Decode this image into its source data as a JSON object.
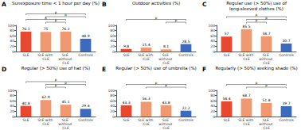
{
  "chart_data": [
    {
      "type": "bar",
      "label": "A",
      "title": "Sunexposure time < 1 hour per day (%)",
      "categories": [
        "SLE",
        "SLE with CLE",
        "SLE without CLE",
        "Controls"
      ],
      "values": [
        76.1,
        75,
        76.2,
        48.9
      ],
      "colors": [
        "#e84830",
        "#f09870",
        "#f09870",
        "#3b6abf"
      ],
      "ylim": [
        0,
        100
      ],
      "yticks": [
        0,
        20,
        40,
        60,
        80,
        100
      ],
      "grid": false,
      "data_labels": true,
      "annotations": [
        {
          "text": "p",
          "from": "SLE",
          "to": "Controls"
        },
        {
          "text": "p",
          "from": "SLE with CLE",
          "to": "Controls"
        },
        {
          "text": "p",
          "from": "SLE",
          "to": "SLE without CLE"
        },
        {
          "text": "p",
          "from": "SLE with CLE",
          "to": "SLE without CLE"
        }
      ]
    },
    {
      "type": "bar",
      "label": "B",
      "title": "Outdoor activities (%)",
      "categories": [
        "SLE",
        "SLE with CLE",
        "SLE without CLE",
        "Controls"
      ],
      "values": [
        9.8,
        15.4,
        8.1,
        28.5
      ],
      "colors": [
        "#e84830",
        "#f09870",
        "#f09870",
        "#3b6abf"
      ],
      "ylim": [
        0,
        100
      ],
      "yticks": [
        0,
        20,
        40,
        60,
        80,
        100
      ],
      "grid": false,
      "data_labels": true,
      "annotations": [
        {
          "text": "p",
          "from": "SLE",
          "to": "Controls"
        },
        {
          "text": "p",
          "from": "SLE without CLE",
          "to": "Controls"
        }
      ]
    },
    {
      "type": "bar",
      "label": "C",
      "title": "Regular use (> 50%) use of\nlong-sleeved clothes (%)",
      "categories": [
        "SLE",
        "SLE with CLE",
        "SLE without CLE",
        "Controls"
      ],
      "values": [
        57,
        85.5,
        58.7,
        30.7
      ],
      "colors": [
        "#e84830",
        "#f09870",
        "#f09870",
        "#3b6abf"
      ],
      "ylim": [
        0,
        100
      ],
      "yticks": [
        0,
        20,
        40,
        60,
        80,
        100
      ],
      "grid": false,
      "data_labels": true,
      "annotations": [
        {
          "text": "p",
          "from": "SLE",
          "to": "Controls"
        },
        {
          "text": "p",
          "from": "SLE with CLE",
          "to": "Controls"
        },
        {
          "text": "p",
          "from": "SLE with CLE",
          "to": "SLE without CLE"
        }
      ]
    },
    {
      "type": "bar",
      "label": "D",
      "title": "Regular (> 50%) use of hat (%)",
      "categories": [
        "SLE",
        "SLE with CLE",
        "SLE without CLE",
        "Controls"
      ],
      "values": [
        40.8,
        62.9,
        45.1,
        29.4
      ],
      "colors": [
        "#e84830",
        "#f09870",
        "#f09870",
        "#3b6abf"
      ],
      "ylim": [
        0,
        100
      ],
      "yticks": [
        0,
        20,
        40,
        60,
        80,
        100
      ],
      "grid": false,
      "data_labels": true,
      "annotations": [
        {
          "text": "p",
          "from": "SLE",
          "to": "Controls"
        },
        {
          "text": "p",
          "from": "SLE with CLE",
          "to": "Controls"
        },
        {
          "text": "p",
          "from": "SLE with CLE",
          "to": "SLE without CLE"
        }
      ]
    },
    {
      "type": "bar",
      "label": "E",
      "title": "Regular (> 50%) use of umbrella (%)",
      "categories": [
        "SLE",
        "SLE with CLE",
        "SLE without CLE",
        "Controls"
      ],
      "values": [
        43.3,
        56.3,
        43.8,
        22.2
      ],
      "colors": [
        "#e84830",
        "#f09870",
        "#f09870",
        "#3b6abf"
      ],
      "ylim": [
        0,
        100
      ],
      "yticks": [
        0,
        20,
        40,
        60,
        80,
        100
      ],
      "grid": false,
      "data_labels": true,
      "annotations": [
        {
          "text": "p",
          "from": "SLE",
          "to": "Controls"
        },
        {
          "text": "p",
          "from": "SLE with CLE",
          "to": "Controls"
        }
      ]
    },
    {
      "type": "bar",
      "label": "F",
      "title": "Regularly (> 50%) seeking shade (%)",
      "categories": [
        "SLE",
        "SLE with CLE",
        "SLE without CLE",
        "Controls"
      ],
      "values": [
        58.4,
        68.7,
        51.8,
        39.7
      ],
      "colors": [
        "#e84830",
        "#f09870",
        "#f09870",
        "#3b6abf"
      ],
      "ylim": [
        0,
        100
      ],
      "yticks": [
        0,
        20,
        40,
        60,
        80,
        100
      ],
      "grid": false,
      "data_labels": true,
      "annotations": [
        {
          "text": "p",
          "from": "SLE",
          "to": "Controls"
        },
        {
          "text": "p",
          "from": "SLE with CLE",
          "to": "Controls"
        }
      ]
    }
  ]
}
